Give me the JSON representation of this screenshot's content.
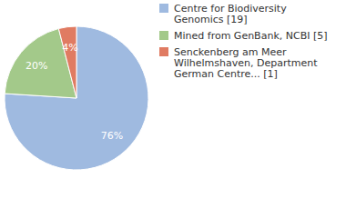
{
  "chart_data": {
    "type": "pie",
    "categories": [
      "Centre for Biodiversity Genomics [19]",
      "Mined from GenBank, NCBI [5]",
      "Senckenberg am Meer Wilhelmshaven, Department German Centre... [1]"
    ],
    "values": [
      76,
      20,
      4
    ],
    "value_labels": [
      "76%",
      "20%",
      "4%"
    ],
    "colors": [
      "#9fbae0",
      "#a3c98a",
      "#e07b62"
    ],
    "data_labels": true,
    "legend": "right"
  }
}
